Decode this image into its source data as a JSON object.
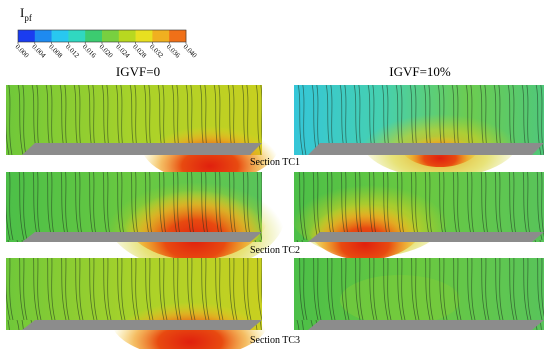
{
  "colorbar": {
    "label": {
      "main": "I",
      "sub": "pf"
    },
    "ticks": [
      "0.000",
      "0.004",
      "0.008",
      "0.012",
      "0.016",
      "0.020",
      "0.024",
      "0.028",
      "0.032",
      "0.036",
      "0.040"
    ]
  },
  "columns": [
    "IGVF=0",
    "IGVF=10%"
  ],
  "sections": [
    "Section TC1",
    "Section TC2",
    "Section TC3"
  ]
}
